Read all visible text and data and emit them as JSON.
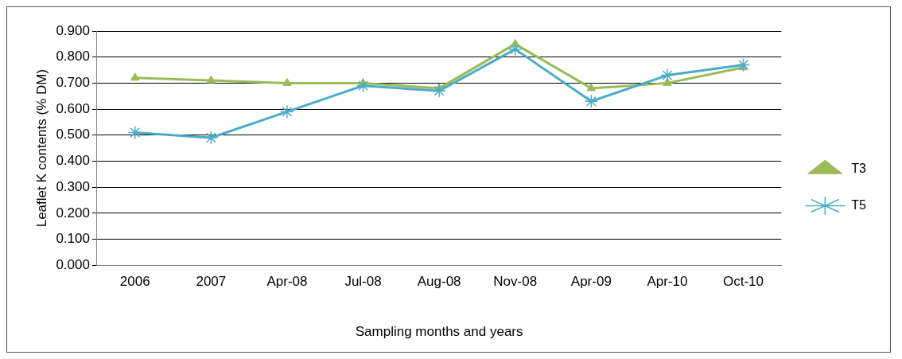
{
  "chart_data": {
    "type": "line",
    "xlabel": "Sampling months and years",
    "ylabel": "Leaflet K contents (% DM)",
    "categories": [
      "2006",
      "2007",
      "Apr-08",
      "Jul-08",
      "Aug-08",
      "Nov-08",
      "Apr-09",
      "Apr-10",
      "Oct-10"
    ],
    "series": [
      {
        "name": "T3",
        "color": "#9bbb59",
        "marker": "triangle",
        "values": [
          0.72,
          0.71,
          0.7,
          0.7,
          0.68,
          0.85,
          0.68,
          0.7,
          0.76
        ]
      },
      {
        "name": "T5",
        "color": "#4bacc6",
        "marker": "cross",
        "values": [
          0.51,
          0.49,
          0.59,
          0.69,
          0.67,
          0.83,
          0.63,
          0.73,
          0.77
        ]
      }
    ],
    "ylim": [
      0,
      0.9
    ],
    "yticks": [
      {
        "value": 0,
        "label": "0.000"
      },
      {
        "value": 0.1,
        "label": "0.100"
      },
      {
        "value": 0.2,
        "label": "0.200"
      },
      {
        "value": 0.3,
        "label": "0.300"
      },
      {
        "value": 0.4,
        "label": "0.400"
      },
      {
        "value": 0.5,
        "label": "0.500"
      },
      {
        "value": 0.6,
        "label": "0.600"
      },
      {
        "value": 0.7,
        "label": "0.700"
      },
      {
        "value": 0.8,
        "label": "0.800"
      },
      {
        "value": 0.9,
        "label": "0.900"
      }
    ],
    "grid": "y",
    "legend": "right",
    "line_style": "solid"
  }
}
